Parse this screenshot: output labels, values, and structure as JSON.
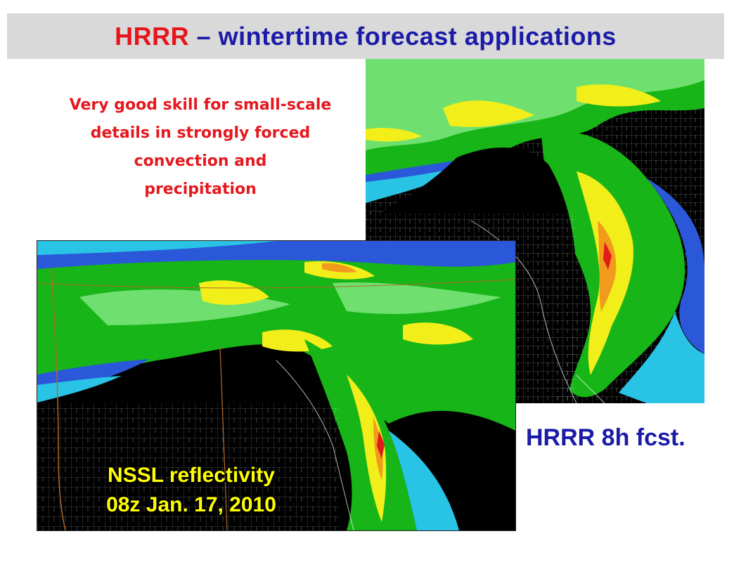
{
  "slide": {
    "title_acronym": "HRRR",
    "title_rest": " – wintertime forecast applications",
    "skill_line_1": "Very good skill for small-scale",
    "skill_line_2": "details in strongly forced",
    "skill_line_3": "convection  and",
    "skill_line_4": "precipitation",
    "fcst_caption": "HRRR 8h fcst.",
    "obs_caption_1": "NSSL reflectivity",
    "obs_caption_2": "08z Jan. 17, 2010"
  },
  "colors": {
    "title_red": "#e8141b",
    "title_blue": "#1b1ba8",
    "skill_text": "#e4191f",
    "obs_caption": "#ffff00",
    "radar_light_green": "#6fe06f",
    "radar_green": "#17b517",
    "radar_dark_green": "#0e7f0e",
    "radar_blue": "#2a58d8",
    "radar_cyan": "#29c3e6",
    "radar_yellow": "#f1ee1a",
    "radar_orange": "#f19b1d",
    "radar_red": "#e11b1b"
  },
  "maps": {
    "forecast": {
      "label": "HRRR 8h forecast reflectivity map"
    },
    "observed": {
      "label": "NSSL observed reflectivity map"
    }
  }
}
